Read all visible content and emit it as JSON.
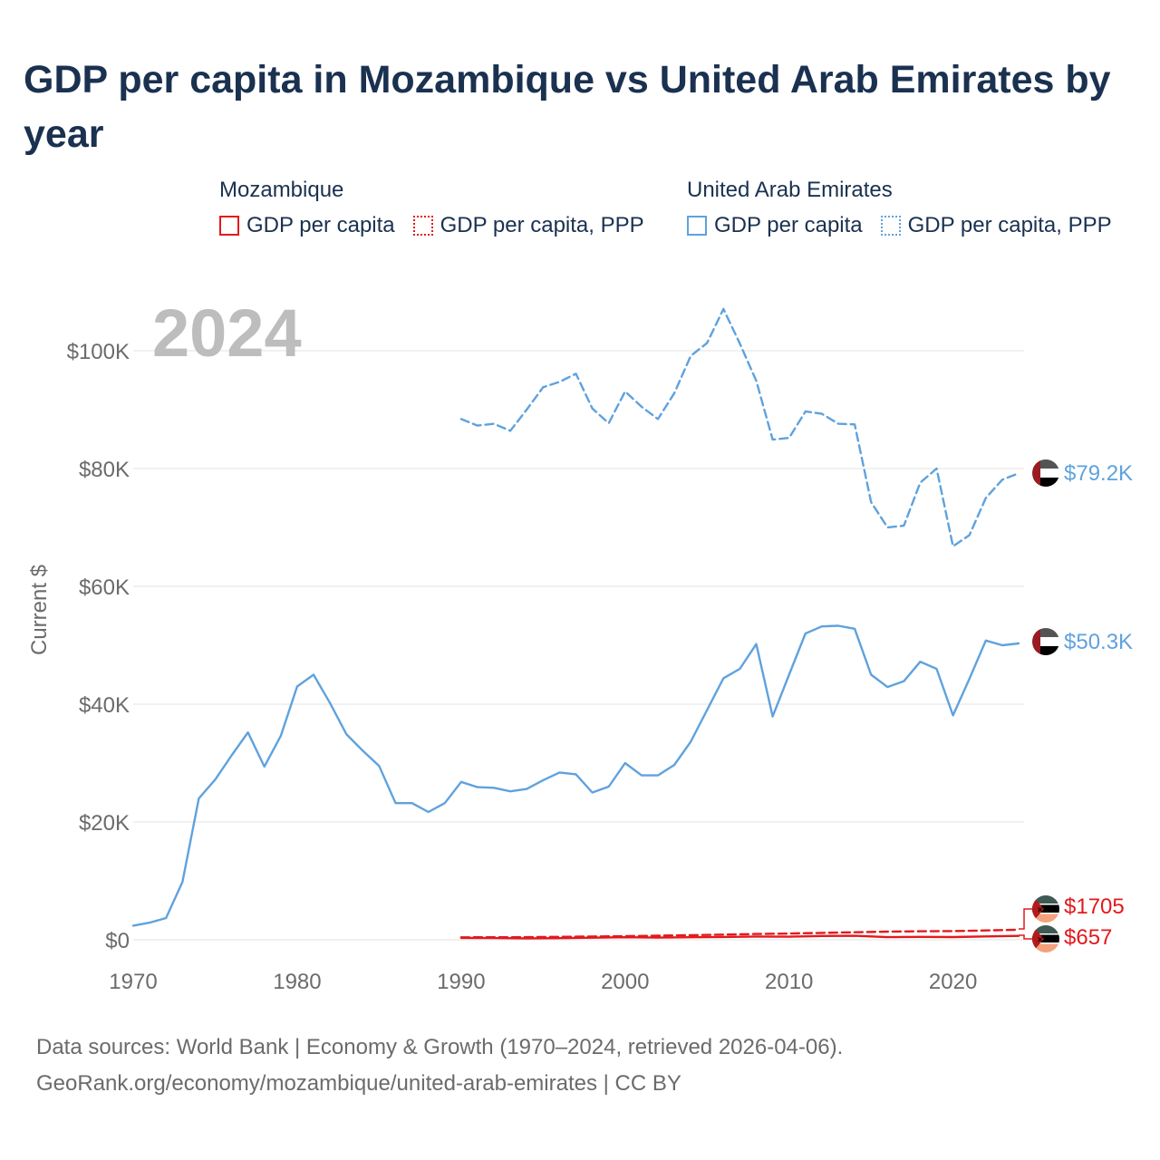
{
  "title": "GDP per capita in Mozambique vs United Arab Emirates by year",
  "legend": [
    {
      "group": "Mozambique",
      "items": [
        {
          "label": "GDP per capita",
          "style": "solid",
          "color": "#e3191c"
        },
        {
          "label": "GDP per capita, PPP",
          "style": "dotted",
          "color": "#e3191c"
        }
      ]
    },
    {
      "group": "United Arab Emirates",
      "items": [
        {
          "label": "GDP per capita",
          "style": "solid",
          "color": "#5fa2dd"
        },
        {
          "label": "GDP per capita, PPP",
          "style": "dotted",
          "color": "#5fa2dd"
        }
      ]
    }
  ],
  "footer": {
    "line1": "Data sources: World Bank | Economy & Growth (1970–2024, retrieved 2026-04-06).",
    "line2": "GeoRank.org/economy/mozambique/united-arab-emirates | CC BY"
  },
  "chart_data": {
    "type": "line",
    "year_label": "2024",
    "ylabel": "Current $",
    "xlim": [
      1970,
      2024
    ],
    "ylim": [
      0,
      110000
    ],
    "x_ticks": [
      1970,
      1980,
      1990,
      2000,
      2010,
      2020
    ],
    "x_tick_labels": [
      "1970",
      "1980",
      "1990",
      "2000",
      "2010",
      "2020"
    ],
    "y_ticks": [
      0,
      20000,
      40000,
      60000,
      80000,
      100000
    ],
    "y_tick_labels": [
      "$0",
      "$20K",
      "$40K",
      "$60K",
      "$80K",
      "$100K"
    ],
    "grid": true,
    "series": [
      {
        "name": "United Arab Emirates GDP per capita",
        "color": "#5fa2dd",
        "dash": "solid",
        "end_label": "$50.3K",
        "x": [
          1970,
          1971,
          1972,
          1973,
          1974,
          1975,
          1976,
          1977,
          1978,
          1979,
          1980,
          1981,
          1982,
          1983,
          1984,
          1985,
          1986,
          1987,
          1988,
          1989,
          1990,
          1991,
          1992,
          1993,
          1994,
          1995,
          1996,
          1997,
          1998,
          1999,
          2000,
          2001,
          2002,
          2003,
          2004,
          2005,
          2006,
          2007,
          2008,
          2009,
          2010,
          2011,
          2012,
          2013,
          2014,
          2015,
          2016,
          2017,
          2018,
          2019,
          2020,
          2021,
          2022,
          2023,
          2024
        ],
        "y": [
          2400,
          2900,
          3700,
          9800,
          24000,
          27200,
          31300,
          35200,
          29400,
          34600,
          43000,
          45000,
          40200,
          34900,
          32100,
          29500,
          23200,
          23200,
          21700,
          23200,
          26800,
          25900,
          25800,
          25200,
          25600,
          27100,
          28400,
          28100,
          25000,
          26000,
          30000,
          27900,
          27900,
          29700,
          33600,
          39000,
          44400,
          46000,
          50200,
          37900,
          45000,
          52000,
          53200,
          53300,
          52800,
          45000,
          42900,
          43900,
          47200,
          46000,
          38100,
          44300,
          50800,
          50000,
          50300
        ]
      },
      {
        "name": "United Arab Emirates GDP per capita, PPP",
        "color": "#5fa2dd",
        "dash": "dashed",
        "end_label": "$79.2K",
        "x": [
          1990,
          1991,
          1992,
          1993,
          1994,
          1995,
          1996,
          1997,
          1998,
          1999,
          2000,
          2001,
          2002,
          2003,
          2004,
          2005,
          2006,
          2007,
          2008,
          2009,
          2010,
          2011,
          2012,
          2013,
          2014,
          2015,
          2016,
          2017,
          2018,
          2019,
          2020,
          2021,
          2022,
          2023,
          2024
        ],
        "y": [
          88400,
          87300,
          87600,
          86400,
          90000,
          93800,
          94700,
          96100,
          90200,
          87700,
          93100,
          90500,
          88400,
          92800,
          99100,
          101300,
          107100,
          101200,
          94900,
          84900,
          85200,
          89700,
          89300,
          87600,
          87500,
          74300,
          70000,
          70300,
          77600,
          80000,
          66800,
          68700,
          75000,
          78100,
          79200
        ]
      },
      {
        "name": "Mozambique GDP per capita",
        "color": "#e3191c",
        "dash": "solid",
        "end_label": "$657",
        "x": [
          1990,
          1992,
          1994,
          1996,
          1998,
          2000,
          2002,
          2004,
          2006,
          2008,
          2010,
          2012,
          2014,
          2016,
          2018,
          2020,
          2022,
          2024
        ],
        "y": [
          330,
          290,
          250,
          270,
          360,
          430,
          370,
          430,
          470,
          560,
          520,
          650,
          680,
          440,
          500,
          460,
          570,
          657
        ]
      },
      {
        "name": "Mozambique GDP per capita, PPP",
        "color": "#e3191c",
        "dash": "dashed",
        "end_label": "$1705",
        "x": [
          1990,
          1992,
          1994,
          1996,
          1998,
          2000,
          2002,
          2004,
          2006,
          2008,
          2010,
          2012,
          2014,
          2016,
          2018,
          2020,
          2022,
          2024
        ],
        "y": [
          420,
          430,
          450,
          500,
          560,
          620,
          690,
          790,
          880,
          980,
          1060,
          1170,
          1280,
          1380,
          1440,
          1480,
          1580,
          1705
        ]
      }
    ]
  }
}
